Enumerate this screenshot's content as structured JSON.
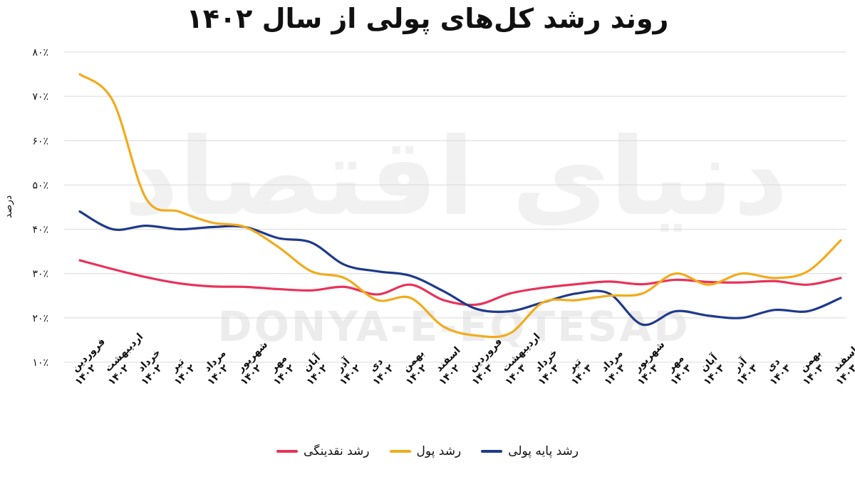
{
  "chart_data": {
    "type": "line",
    "title": "روند رشد کل‌های پولی از سال ۱۴۰۲",
    "ylabel": "درصد",
    "xlabel": "",
    "ylim": [
      10,
      80
    ],
    "yticks": [
      "۱۰٪",
      "۲۰٪",
      "۳۰٪",
      "۴۰٪",
      "۵۰٪",
      "۶۰٪",
      "۷۰٪",
      "۸۰٪"
    ],
    "grid": true,
    "legend_position": "bottom",
    "watermark": "DONYA-E-EQTESAD",
    "categories": [
      "فروردین ۱۴۰۲",
      "اردیبهشت ۱۴۰۲",
      "خرداد ۱۴۰۲",
      "تیر ۱۴۰۲",
      "مرداد ۱۴۰۲",
      "شهریور ۱۴۰۲",
      "مهر ۱۴۰۲",
      "آبان ۱۴۰۲",
      "آذر ۱۴۰۲",
      "دی ۱۴۰۲",
      "بهمن ۱۴۰۲",
      "اسفند ۱۴۰۲",
      "فروردین ۱۴۰۳",
      "اردیبهشت ۱۴۰۳",
      "خرداد ۱۴۰۳",
      "تیر ۱۴۰۳",
      "مرداد ۱۴۰۳",
      "شهریور ۱۴۰۳",
      "مهر ۱۴۰۳",
      "آبان ۱۴۰۳",
      "آذر ۱۴۰۳",
      "دی ۱۴۰۳",
      "بهمن ۱۴۰۳",
      "اسفند ۱۴۰۳"
    ],
    "series": [
      {
        "name": "رشد پایه پولی",
        "color": "#1f3a8a",
        "values": [
          44.0,
          40.0,
          40.8,
          40.0,
          40.5,
          40.5,
          38.0,
          37.0,
          32.0,
          30.5,
          29.5,
          26.0,
          22.0,
          21.5,
          23.5,
          25.5,
          25.5,
          18.5,
          21.5,
          20.5,
          20.0,
          21.8,
          21.5,
          24.5
        ]
      },
      {
        "name": "رشد پول",
        "color": "#f2ab1c",
        "values": [
          75.0,
          69.0,
          47.0,
          44.0,
          41.5,
          40.5,
          36.0,
          30.5,
          29.0,
          24.0,
          24.5,
          18.0,
          16.0,
          16.5,
          23.5,
          24.0,
          25.0,
          25.5,
          30.0,
          27.5,
          30.0,
          29.0,
          30.5,
          37.5
        ]
      },
      {
        "name": "رشد نقدینگی",
        "color": "#e8335a",
        "values": [
          33.0,
          31.0,
          29.2,
          27.8,
          27.1,
          27.0,
          26.5,
          26.2,
          27.0,
          25.3,
          27.5,
          24.0,
          23.0,
          25.5,
          26.8,
          27.6,
          28.2,
          27.6,
          28.6,
          28.1,
          28.0,
          28.3,
          27.5,
          29.0
        ]
      }
    ]
  }
}
